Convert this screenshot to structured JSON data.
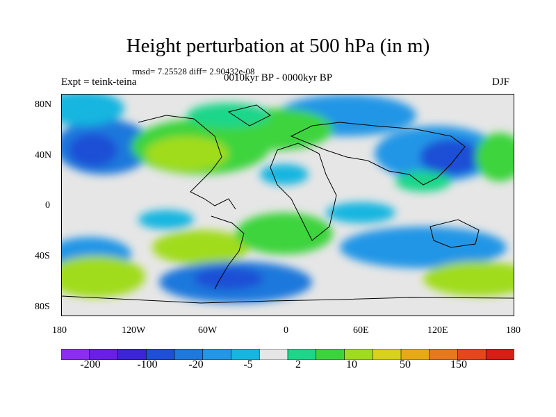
{
  "title": "Height perturbation at 500 hPa (in m)",
  "stats_line": "rmsd= 7.25528 diff= 2.90432e-08",
  "left_label": "Expt = teink-teina",
  "center_label": "0010kyr BP - 0000kyr BP",
  "right_label": "DJF",
  "map": {
    "lat_ticks": [
      "80N",
      "40N",
      "0",
      "40S",
      "80S"
    ],
    "lon_ticks": [
      "180",
      "120W",
      "60W",
      "0",
      "60E",
      "120E",
      "180"
    ],
    "background_color": "#e6e6e6"
  },
  "colorbar": {
    "colors": [
      "#8b2ef0",
      "#6a1fe6",
      "#3c25d8",
      "#1f4fd6",
      "#1f78dc",
      "#2396e6",
      "#17b6e0",
      "#e6e6e6",
      "#1ed68a",
      "#3cd43c",
      "#a0dc1e",
      "#d6d21e",
      "#e6aa14",
      "#e6781e",
      "#e6461e",
      "#d61e14"
    ],
    "labels": [
      "-200",
      "-100",
      "-20",
      "-5",
      "2",
      "10",
      "50",
      "150"
    ]
  }
}
